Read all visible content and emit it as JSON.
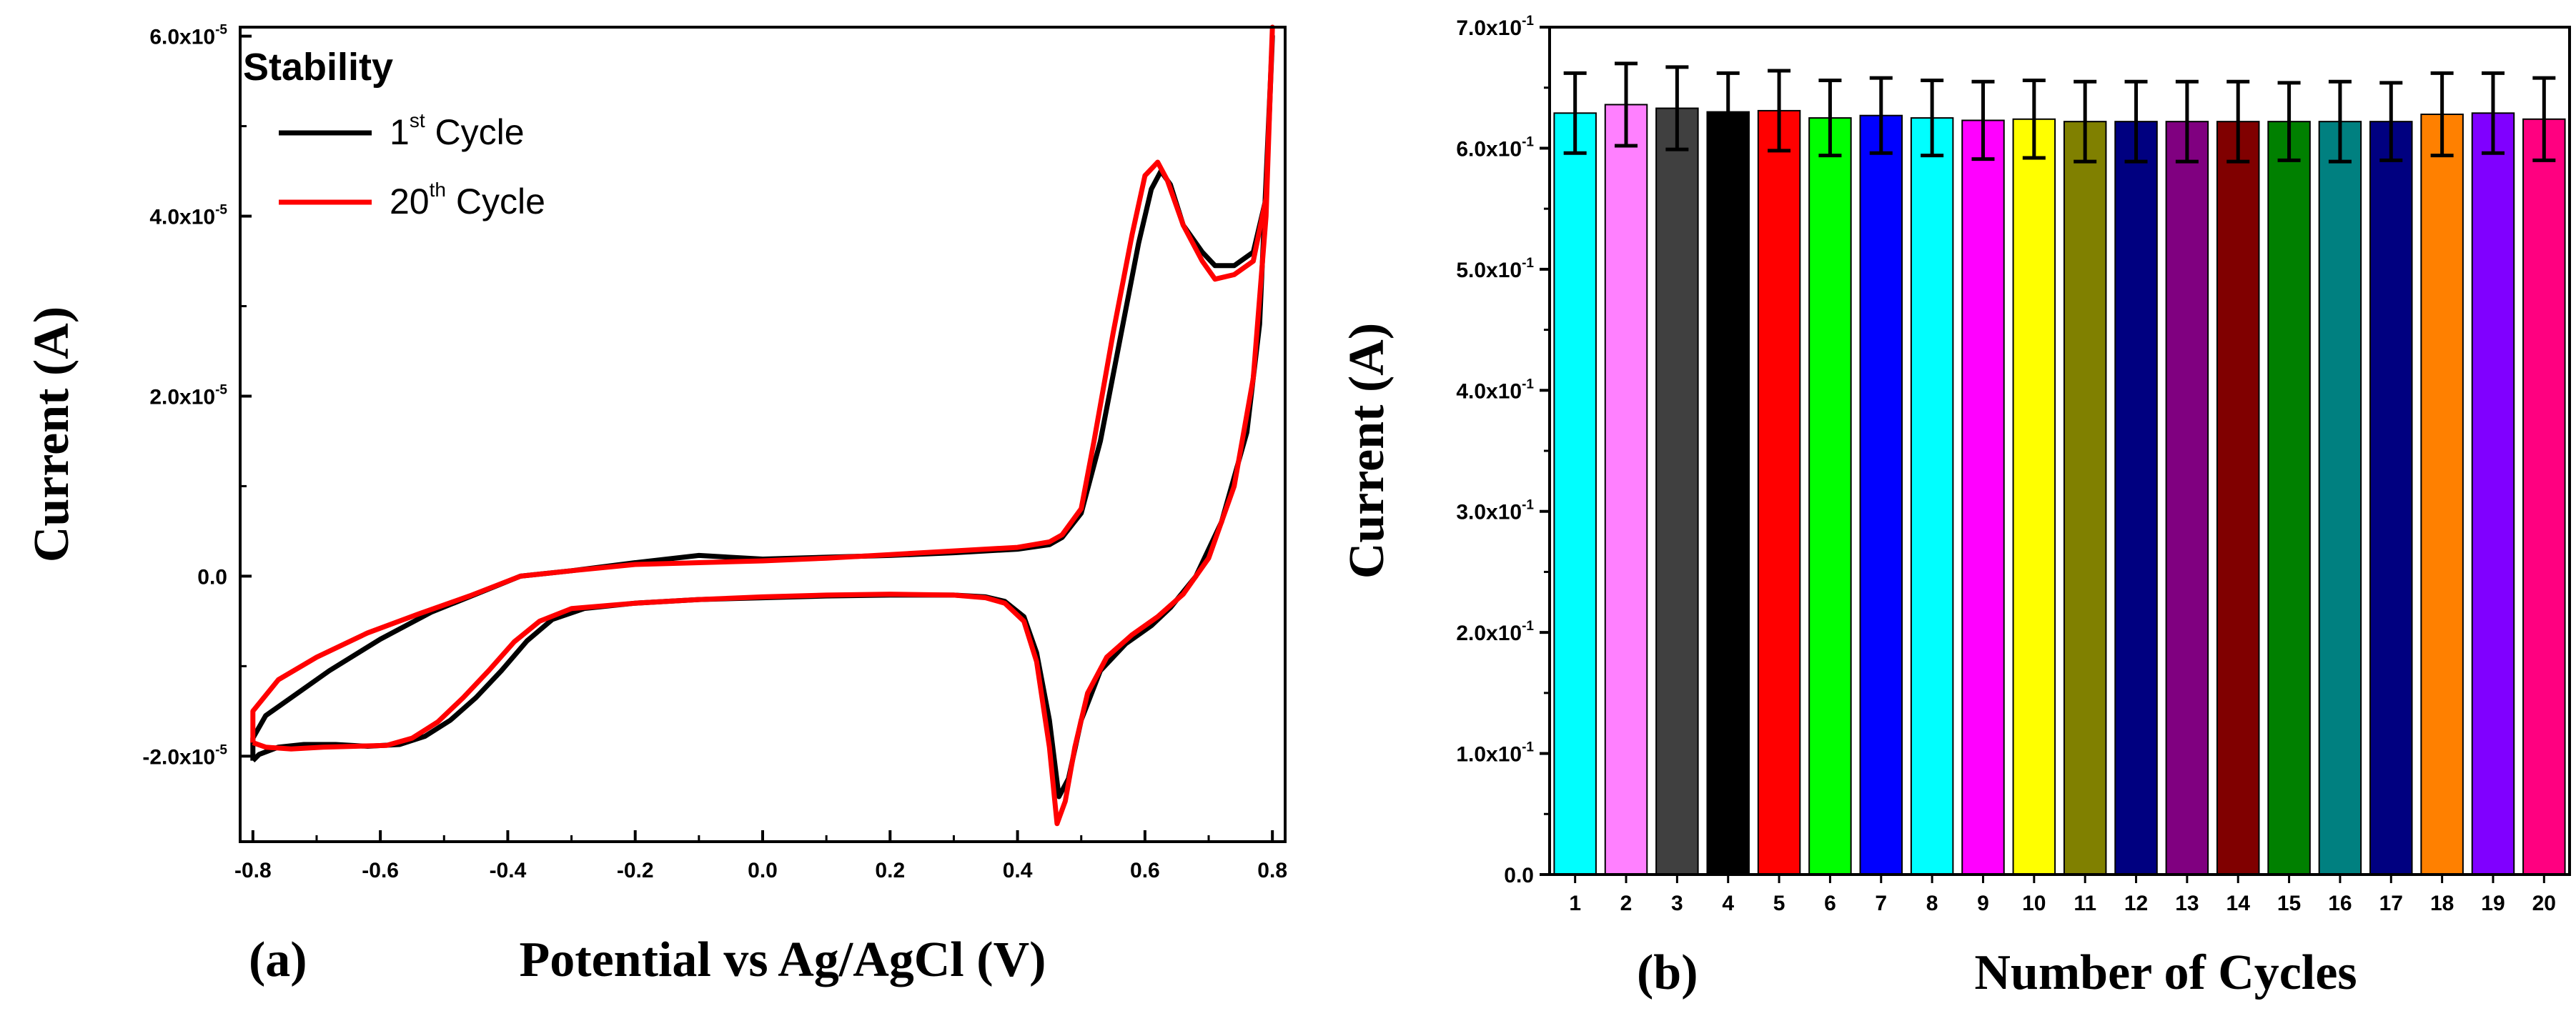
{
  "chart_data": [
    {
      "panel_label": "(a)",
      "type": "line",
      "title": "",
      "xlabel": "Potential vs Ag/AgCl (V)",
      "ylabel": "Current (A)",
      "xlim": [
        -0.82,
        0.82
      ],
      "ylim": [
        -2.95e-05,
        6.1e-05
      ],
      "grid": false,
      "legend": {
        "title": "Stability",
        "placement": "top-left"
      },
      "x_ticks": [
        {
          "value": -0.8,
          "label": "-0.8"
        },
        {
          "value": -0.6,
          "label": "-0.6"
        },
        {
          "value": -0.4,
          "label": "-0.4"
        },
        {
          "value": -0.2,
          "label": "-0.2"
        },
        {
          "value": 0.0,
          "label": "0.0"
        },
        {
          "value": 0.2,
          "label": "0.2"
        },
        {
          "value": 0.4,
          "label": "0.4"
        },
        {
          "value": 0.6,
          "label": "0.6"
        },
        {
          "value": 0.8,
          "label": "0.8"
        }
      ],
      "y_ticks": [
        {
          "value": -2e-05,
          "mantissa": "-2.0x10",
          "exp": "-5"
        },
        {
          "value": 0,
          "mantissa": "0.0",
          "exp": ""
        },
        {
          "value": 2e-05,
          "mantissa": "2.0x10",
          "exp": "-5"
        },
        {
          "value": 4e-05,
          "mantissa": "4.0x10",
          "exp": "-5"
        },
        {
          "value": 6e-05,
          "mantissa": "6.0x10",
          "exp": "-5"
        }
      ],
      "series": [
        {
          "name": "1st Cycle",
          "label_base": "1",
          "label_sup": "st",
          "label_rest": " Cycle",
          "color": "#000000",
          "points": [
            [
              -0.8,
              -2.05e-05
            ],
            [
              -0.79,
              -1.98e-05
            ],
            [
              -0.76,
              -1.9e-05
            ],
            [
              -0.72,
              -1.87e-05
            ],
            [
              -0.67,
              -1.87e-05
            ],
            [
              -0.62,
              -1.89e-05
            ],
            [
              -0.57,
              -1.87e-05
            ],
            [
              -0.53,
              -1.78e-05
            ],
            [
              -0.49,
              -1.6e-05
            ],
            [
              -0.45,
              -1.35e-05
            ],
            [
              -0.41,
              -1.05e-05
            ],
            [
              -0.37,
              -7.2e-06
            ],
            [
              -0.33,
              -4.8e-06
            ],
            [
              -0.28,
              -3.6e-06
            ],
            [
              -0.2,
              -3e-06
            ],
            [
              -0.1,
              -2.6e-06
            ],
            [
              0.0,
              -2.4e-06
            ],
            [
              0.1,
              -2.2e-06
            ],
            [
              0.2,
              -2.1e-06
            ],
            [
              0.3,
              -2.1e-06
            ],
            [
              0.35,
              -2.3e-06
            ],
            [
              0.38,
              -2.8e-06
            ],
            [
              0.41,
              -4.5e-06
            ],
            [
              0.43,
              -8.5e-06
            ],
            [
              0.45,
              -1.6e-05
            ],
            [
              0.465,
              -2.45e-05
            ],
            [
              0.48,
              -2.25e-05
            ],
            [
              0.5,
              -1.6e-05
            ],
            [
              0.53,
              -1.05e-05
            ],
            [
              0.57,
              -7.5e-06
            ],
            [
              0.61,
              -5.5e-06
            ],
            [
              0.64,
              -3.5e-06
            ],
            [
              0.68,
              0.0
            ],
            [
              0.72,
              6e-06
            ],
            [
              0.76,
              1.6e-05
            ],
            [
              0.78,
              2.8e-05
            ],
            [
              0.8,
              6e-05
            ],
            [
              0.79,
              4.2e-05
            ],
            [
              0.77,
              3.6e-05
            ],
            [
              0.74,
              3.45e-05
            ],
            [
              0.71,
              3.45e-05
            ],
            [
              0.69,
              3.6e-05
            ],
            [
              0.66,
              3.9e-05
            ],
            [
              0.64,
              4.35e-05
            ],
            [
              0.625,
              4.5e-05
            ],
            [
              0.61,
              4.3e-05
            ],
            [
              0.59,
              3.7e-05
            ],
            [
              0.56,
              2.6e-05
            ],
            [
              0.53,
              1.5e-05
            ],
            [
              0.5,
              7e-06
            ],
            [
              0.47,
              4.3e-06
            ],
            [
              0.45,
              3.5e-06
            ],
            [
              0.4,
              3e-06
            ],
            [
              0.3,
              2.6e-06
            ],
            [
              0.2,
              2.3e-06
            ],
            [
              0.1,
              2.1e-06
            ],
            [
              0.0,
              1.9e-06
            ],
            [
              -0.1,
              2.3e-06
            ],
            [
              -0.2,
              1.5e-06
            ],
            [
              -0.3,
              6e-07
            ],
            [
              -0.38,
              0.0
            ],
            [
              -0.45,
              -2e-06
            ],
            [
              -0.52,
              -4e-06
            ],
            [
              -0.6,
              -7e-06
            ],
            [
              -0.68,
              -1.05e-05
            ],
            [
              -0.74,
              -1.35e-05
            ],
            [
              -0.78,
              -1.55e-05
            ],
            [
              -0.8,
              -1.8e-05
            ],
            [
              -0.8,
              -2.05e-05
            ]
          ]
        },
        {
          "name": "20th Cycle",
          "label_base": "20",
          "label_sup": "th",
          "label_rest": " Cycle",
          "color": "#ff0000",
          "points": [
            [
              -0.8,
              -1.85e-05
            ],
            [
              -0.78,
              -1.9e-05
            ],
            [
              -0.74,
              -1.92e-05
            ],
            [
              -0.69,
              -1.9e-05
            ],
            [
              -0.64,
              -1.89e-05
            ],
            [
              -0.59,
              -1.88e-05
            ],
            [
              -0.55,
              -1.8e-05
            ],
            [
              -0.51,
              -1.62e-05
            ],
            [
              -0.47,
              -1.35e-05
            ],
            [
              -0.43,
              -1.05e-05
            ],
            [
              -0.39,
              -7.3e-06
            ],
            [
              -0.35,
              -5e-06
            ],
            [
              -0.3,
              -3.6e-06
            ],
            [
              -0.2,
              -3e-06
            ],
            [
              -0.1,
              -2.6e-06
            ],
            [
              0.0,
              -2.3e-06
            ],
            [
              0.1,
              -2.1e-06
            ],
            [
              0.2,
              -2e-06
            ],
            [
              0.3,
              -2.1e-06
            ],
            [
              0.35,
              -2.4e-06
            ],
            [
              0.38,
              -3e-06
            ],
            [
              0.41,
              -5e-06
            ],
            [
              0.43,
              -9.5e-06
            ],
            [
              0.45,
              -1.9e-05
            ],
            [
              0.462,
              -2.75e-05
            ],
            [
              0.475,
              -2.5e-05
            ],
            [
              0.49,
              -1.9e-05
            ],
            [
              0.51,
              -1.3e-05
            ],
            [
              0.54,
              -9e-06
            ],
            [
              0.58,
              -6.5e-06
            ],
            [
              0.62,
              -4.5e-06
            ],
            [
              0.66,
              -2e-06
            ],
            [
              0.7,
              2e-06
            ],
            [
              0.74,
              1e-05
            ],
            [
              0.77,
              2.2e-05
            ],
            [
              0.79,
              4e-05
            ],
            [
              0.8,
              6.1e-05
            ],
            [
              0.79,
              4.2e-05
            ],
            [
              0.77,
              3.5e-05
            ],
            [
              0.74,
              3.35e-05
            ],
            [
              0.71,
              3.3e-05
            ],
            [
              0.69,
              3.5e-05
            ],
            [
              0.66,
              3.9e-05
            ],
            [
              0.635,
              4.4e-05
            ],
            [
              0.62,
              4.6e-05
            ],
            [
              0.6,
              4.45e-05
            ],
            [
              0.58,
              3.8e-05
            ],
            [
              0.55,
              2.7e-05
            ],
            [
              0.52,
              1.5e-05
            ],
            [
              0.5,
              7.5e-06
            ],
            [
              0.47,
              4.6e-06
            ],
            [
              0.45,
              3.8e-06
            ],
            [
              0.4,
              3.2e-06
            ],
            [
              0.3,
              2.8e-06
            ],
            [
              0.2,
              2.4e-06
            ],
            [
              0.1,
              2e-06
            ],
            [
              0.0,
              1.7e-06
            ],
            [
              -0.1,
              1.5e-06
            ],
            [
              -0.2,
              1.3e-06
            ],
            [
              -0.3,
              6e-07
            ],
            [
              -0.38,
              0.0
            ],
            [
              -0.46,
              -2.2e-06
            ],
            [
              -0.54,
              -4.2e-06
            ],
            [
              -0.62,
              -6.3e-06
            ],
            [
              -0.7,
              -9e-06
            ],
            [
              -0.76,
              -1.15e-05
            ],
            [
              -0.8,
              -1.5e-05
            ],
            [
              -0.8,
              -1.85e-05
            ]
          ]
        }
      ]
    },
    {
      "panel_label": "(b)",
      "type": "bar",
      "title": "",
      "xlabel": "Number of Cycles",
      "ylabel": "Current (A)",
      "ylim": [
        0,
        0.7
      ],
      "grid": false,
      "categories": [
        "1",
        "2",
        "3",
        "4",
        "5",
        "6",
        "7",
        "8",
        "9",
        "10",
        "11",
        "12",
        "13",
        "14",
        "15",
        "16",
        "17",
        "18",
        "19",
        "20"
      ],
      "values": [
        0.629,
        0.636,
        0.633,
        0.63,
        0.631,
        0.625,
        0.627,
        0.625,
        0.623,
        0.624,
        0.622,
        0.622,
        0.622,
        0.622,
        0.622,
        0.622,
        0.622,
        0.628,
        0.629,
        0.624
      ],
      "errors": [
        0.033,
        0.034,
        0.034,
        0.032,
        0.033,
        0.031,
        0.031,
        0.031,
        0.032,
        0.032,
        0.033,
        0.033,
        0.033,
        0.033,
        0.032,
        0.033,
        0.032,
        0.034,
        0.033,
        0.034
      ],
      "colors": [
        "#00ffff",
        "#ff80ff",
        "#404040",
        "#000000",
        "#ff0000",
        "#00ff00",
        "#0000ff",
        "#00ffff",
        "#ff00ff",
        "#ffff00",
        "#808000",
        "#000080",
        "#800080",
        "#800000",
        "#008000",
        "#008080",
        "#000080",
        "#ff8000",
        "#8000ff",
        "#ff0080"
      ],
      "y_ticks": [
        {
          "value": 0.0,
          "mantissa": "0.0",
          "exp": ""
        },
        {
          "value": 0.1,
          "mantissa": "1.0x10",
          "exp": "-1"
        },
        {
          "value": 0.2,
          "mantissa": "2.0x10",
          "exp": "-1"
        },
        {
          "value": 0.3,
          "mantissa": "3.0x10",
          "exp": "-1"
        },
        {
          "value": 0.4,
          "mantissa": "4.0x10",
          "exp": "-1"
        },
        {
          "value": 0.5,
          "mantissa": "5.0x10",
          "exp": "-1"
        },
        {
          "value": 0.6,
          "mantissa": "6.0x10",
          "exp": "-1"
        },
        {
          "value": 0.7,
          "mantissa": "7.0x10",
          "exp": "-1"
        }
      ]
    }
  ]
}
